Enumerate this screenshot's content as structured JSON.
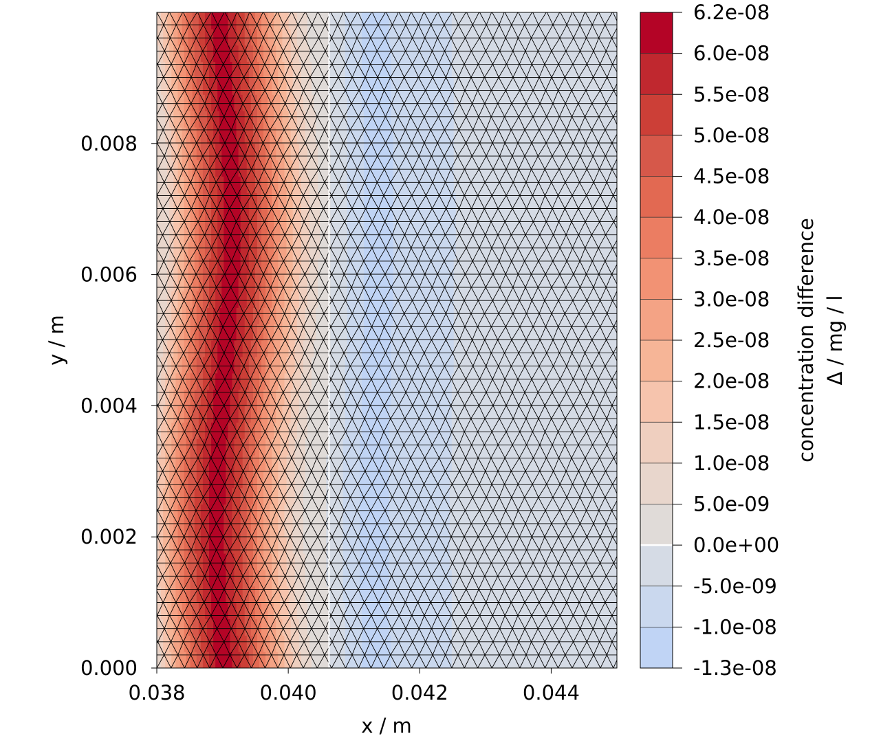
{
  "chart_data": {
    "type": "heatmap",
    "subtype": "filled contour on triangular mesh",
    "xlabel": "x / m",
    "ylabel": "y / m",
    "xlim": [
      0.038,
      0.045
    ],
    "ylim": [
      0.0,
      0.01
    ],
    "xticks": [
      "0.038",
      "0.040",
      "0.042",
      "0.044"
    ],
    "xtick_values": [
      0.038,
      0.04,
      0.042,
      0.044
    ],
    "yticks": [
      "0.000",
      "0.002",
      "0.004",
      "0.006",
      "0.008"
    ],
    "ytick_values": [
      0.0,
      0.002,
      0.004,
      0.006,
      0.008
    ],
    "colorbar": {
      "label_line1": "concentration difference",
      "label_line2": "Δ / mg / l",
      "tick_labels": [
        "-1.3e-08",
        "-1.0e-08",
        "-5.0e-09",
        "0.0e+00",
        "5.0e-09",
        "1.0e-08",
        "1.5e-08",
        "2.0e-08",
        "2.5e-08",
        "3.0e-08",
        "3.5e-08",
        "4.0e-08",
        "4.5e-08",
        "5.0e-08",
        "5.5e-08",
        "6.0e-08",
        "6.2e-08"
      ],
      "levels": [
        -1.3e-08,
        -1e-08,
        -5e-09,
        0,
        5e-09,
        1e-08,
        1.5e-08,
        2e-08,
        2.5e-08,
        3e-08,
        3.5e-08,
        4e-08,
        4.5e-08,
        5e-08,
        5.5e-08,
        6e-08,
        6.2e-08
      ],
      "colors": [
        "#c0d4f5",
        "#cad8ee",
        "#d5dbe5",
        "#e0dbd8",
        "#e8d6cc",
        "#efcfbf",
        "#f6c4ad",
        "#f6b597",
        "#f4a385",
        "#f29274",
        "#eb7d62",
        "#e26952",
        "#d6584a",
        "#cc3f37",
        "#c0282f",
        "#b40426"
      ]
    },
    "zero_contour_color": "#ffffff",
    "mesh_line_color": "#000000",
    "peak_location_x": 0.0391,
    "zero_contour_x": 0.04062
  }
}
